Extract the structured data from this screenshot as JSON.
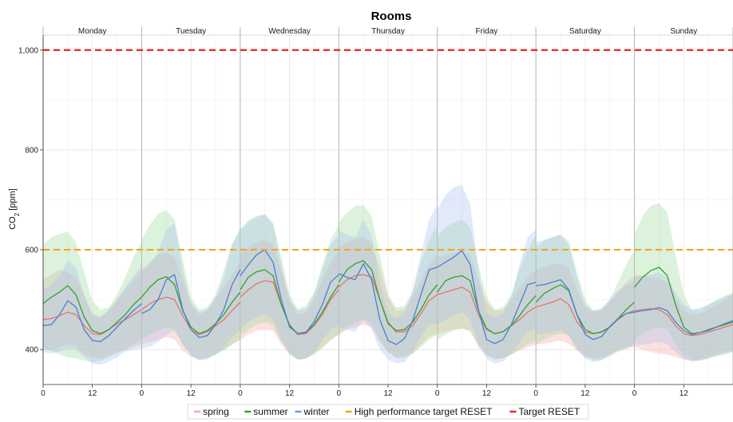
{
  "chart_data": {
    "type": "line",
    "title": "Rooms",
    "ylabel": "CO₂ [ppm]",
    "ylabel_main": "CO",
    "ylabel_sub": "2",
    "ylabel_unit": " [ppm]",
    "ylim": [
      330,
      1030
    ],
    "yticks": [
      400,
      600,
      800,
      1000
    ],
    "ytick_labels": [
      "400",
      "600",
      "800",
      "1,000"
    ],
    "facets": [
      "Monday",
      "Tuesday",
      "Wednesday",
      "Thursday",
      "Friday",
      "Saturday",
      "Sunday"
    ],
    "xtick_labels": [
      "0",
      "12"
    ],
    "x_hours": [
      0,
      2,
      4,
      6,
      8,
      10,
      12,
      14,
      16,
      18,
      20,
      22,
      24
    ],
    "reference_lines": [
      {
        "name": "High performance target RESET",
        "value": 600,
        "color": "#f2a61c"
      },
      {
        "name": "Target RESET",
        "value": 1000,
        "color": "#e8231f"
      }
    ],
    "series": [
      {
        "name": "spring",
        "color": "#e8736c",
        "band_color": "#f5a9a3",
        "values": [
          [
            460,
            462,
            468,
            475,
            470,
            448,
            432,
            430,
            440,
            452,
            460,
            470,
            480
          ],
          [
            480,
            492,
            500,
            505,
            500,
            468,
            440,
            430,
            436,
            448,
            460,
            478,
            495
          ],
          [
            505,
            520,
            532,
            538,
            535,
            490,
            450,
            430,
            432,
            448,
            470,
            500,
            520
          ],
          [
            525,
            540,
            548,
            550,
            545,
            500,
            455,
            435,
            436,
            448,
            472,
            498,
            510
          ],
          [
            510,
            515,
            520,
            525,
            515,
            470,
            440,
            432,
            436,
            448,
            460,
            475,
            485
          ],
          [
            485,
            490,
            495,
            502,
            490,
            455,
            435,
            432,
            436,
            445,
            460,
            472,
            478
          ],
          [
            478,
            480,
            482,
            480,
            470,
            448,
            432,
            428,
            430,
            435,
            440,
            445,
            450
          ]
        ],
        "lower": [
          [
            400,
            398,
            405,
            410,
            408,
            390,
            385,
            382,
            388,
            395,
            400,
            405,
            410
          ],
          [
            410,
            415,
            420,
            425,
            420,
            398,
            385,
            380,
            384,
            392,
            400,
            410,
            420
          ],
          [
            420,
            430,
            438,
            440,
            438,
            410,
            390,
            380,
            382,
            392,
            405,
            420,
            430
          ],
          [
            430,
            440,
            445,
            450,
            445,
            415,
            395,
            385,
            386,
            392,
            410,
            425,
            432
          ],
          [
            432,
            436,
            440,
            442,
            438,
            405,
            388,
            382,
            384,
            390,
            398,
            405,
            410
          ],
          [
            410,
            412,
            415,
            418,
            412,
            398,
            385,
            382,
            384,
            390,
            398,
            402,
            405
          ],
          [
            405,
            400,
            395,
            392,
            390,
            385,
            380,
            378,
            380,
            385,
            390,
            395,
            400
          ]
        ],
        "upper": [
          [
            540,
            550,
            560,
            555,
            545,
            510,
            470,
            465,
            478,
            500,
            520,
            540,
            560
          ],
          [
            560,
            575,
            590,
            595,
            585,
            540,
            490,
            470,
            478,
            500,
            525,
            550,
            575
          ],
          [
            590,
            605,
            615,
            620,
            610,
            560,
            500,
            470,
            475,
            500,
            540,
            575,
            600
          ],
          [
            605,
            615,
            622,
            625,
            615,
            565,
            505,
            478,
            480,
            505,
            540,
            570,
            590
          ],
          [
            585,
            590,
            595,
            598,
            590,
            540,
            495,
            478,
            480,
            500,
            525,
            545,
            560
          ],
          [
            560,
            565,
            570,
            572,
            565,
            520,
            485,
            475,
            478,
            495,
            515,
            535,
            548
          ],
          [
            550,
            548,
            545,
            542,
            535,
            505,
            478,
            470,
            472,
            480,
            490,
            500,
            510
          ]
        ]
      },
      {
        "name": "summer",
        "color": "#33a02c",
        "band_color": "#9ed99a",
        "values": [
          [
            492,
            505,
            515,
            528,
            510,
            465,
            438,
            432,
            440,
            455,
            470,
            490,
            505
          ],
          [
            505,
            525,
            540,
            546,
            530,
            478,
            445,
            432,
            438,
            452,
            470,
            495,
            515
          ],
          [
            520,
            545,
            556,
            560,
            548,
            490,
            448,
            432,
            435,
            450,
            475,
            505,
            530
          ],
          [
            535,
            560,
            572,
            578,
            560,
            500,
            452,
            438,
            440,
            455,
            480,
            510,
            530
          ],
          [
            515,
            538,
            545,
            548,
            538,
            478,
            442,
            432,
            436,
            448,
            468,
            490,
            508
          ],
          [
            495,
            512,
            522,
            530,
            518,
            470,
            440,
            432,
            435,
            445,
            462,
            480,
            495
          ],
          [
            525,
            545,
            558,
            565,
            548,
            490,
            445,
            432,
            434,
            440,
            445,
            450,
            455
          ]
        ],
        "lower": [
          [
            405,
            398,
            390,
            385,
            382,
            378,
            375,
            378,
            385,
            392,
            400,
            410,
            418
          ],
          [
            420,
            430,
            438,
            445,
            440,
            410,
            390,
            380,
            383,
            390,
            398,
            410,
            420
          ],
          [
            428,
            440,
            450,
            455,
            448,
            415,
            392,
            380,
            382,
            390,
            402,
            418,
            430
          ],
          [
            430,
            445,
            455,
            460,
            452,
            418,
            395,
            382,
            384,
            392,
            405,
            420,
            430
          ],
          [
            420,
            430,
            438,
            442,
            436,
            410,
            390,
            380,
            382,
            390,
            400,
            410,
            418
          ],
          [
            410,
            420,
            428,
            432,
            428,
            402,
            388,
            378,
            380,
            386,
            395,
            402,
            410
          ],
          [
            420,
            432,
            440,
            445,
            440,
            410,
            390,
            378,
            378,
            382,
            386,
            390,
            395
          ]
        ],
        "upper": [
          [
            610,
            625,
            632,
            636,
            615,
            555,
            498,
            480,
            485,
            510,
            545,
            585,
            615
          ],
          [
            620,
            650,
            672,
            680,
            660,
            580,
            505,
            480,
            485,
            510,
            560,
            610,
            640
          ],
          [
            640,
            660,
            668,
            670,
            655,
            585,
            510,
            482,
            488,
            515,
            570,
            620,
            650
          ],
          [
            655,
            675,
            688,
            690,
            668,
            590,
            510,
            484,
            488,
            515,
            575,
            620,
            650
          ],
          [
            625,
            645,
            655,
            660,
            645,
            570,
            505,
            480,
            485,
            510,
            560,
            600,
            630
          ],
          [
            605,
            618,
            625,
            630,
            618,
            555,
            500,
            478,
            482,
            500,
            535,
            570,
            600
          ],
          [
            630,
            668,
            688,
            694,
            675,
            590,
            510,
            480,
            480,
            490,
            500,
            508,
            515
          ]
        ]
      },
      {
        "name": "winter",
        "color": "#4a7fd6",
        "band_color": "#a9bff2",
        "values": [
          [
            448,
            450,
            470,
            498,
            485,
            440,
            418,
            416,
            428,
            445,
            462,
            478,
            492
          ],
          [
            472,
            480,
            500,
            540,
            550,
            480,
            440,
            424,
            428,
            450,
            480,
            530,
            560
          ],
          [
            548,
            570,
            590,
            600,
            575,
            500,
            445,
            432,
            434,
            456,
            490,
            535,
            550
          ],
          [
            552,
            545,
            540,
            572,
            540,
            460,
            418,
            410,
            422,
            458,
            510,
            560,
            565
          ],
          [
            565,
            575,
            585,
            598,
            570,
            480,
            420,
            412,
            420,
            450,
            490,
            530,
            535
          ],
          [
            528,
            530,
            535,
            540,
            520,
            470,
            430,
            420,
            426,
            446,
            462,
            472,
            475
          ],
          [
            475,
            478,
            480,
            484,
            478,
            455,
            438,
            430,
            434,
            438,
            445,
            452,
            458
          ]
        ],
        "lower": [
          [
            395,
            392,
            396,
            402,
            400,
            385,
            372,
            370,
            375,
            385,
            395,
            400,
            402
          ],
          [
            402,
            405,
            415,
            430,
            438,
            410,
            388,
            378,
            380,
            390,
            405,
            425,
            440
          ],
          [
            440,
            455,
            465,
            472,
            460,
            420,
            392,
            380,
            382,
            395,
            418,
            440,
            448
          ],
          [
            445,
            440,
            435,
            460,
            440,
            400,
            380,
            372,
            375,
            395,
            425,
            450,
            452
          ],
          [
            452,
            460,
            468,
            475,
            460,
            410,
            382,
            372,
            376,
            392,
            415,
            435,
            440
          ],
          [
            430,
            432,
            435,
            440,
            428,
            400,
            382,
            375,
            378,
            390,
            400,
            405,
            408
          ],
          [
            408,
            410,
            412,
            415,
            410,
            395,
            382,
            376,
            378,
            382,
            388,
            392,
            396
          ]
        ],
        "upper": [
          [
            520,
            530,
            548,
            580,
            565,
            510,
            470,
            465,
            480,
            500,
            525,
            548,
            568
          ],
          [
            555,
            570,
            595,
            640,
            652,
            560,
            495,
            475,
            482,
            505,
            545,
            610,
            645
          ],
          [
            640,
            655,
            665,
            672,
            650,
            570,
            500,
            478,
            482,
            510,
            560,
            610,
            630
          ],
          [
            640,
            630,
            625,
            660,
            630,
            535,
            475,
            462,
            475,
            520,
            590,
            660,
            690
          ],
          [
            680,
            710,
            725,
            730,
            690,
            560,
            475,
            465,
            472,
            505,
            570,
            625,
            640
          ],
          [
            615,
            620,
            625,
            630,
            610,
            545,
            490,
            478,
            482,
            500,
            518,
            530,
            535
          ],
          [
            545,
            548,
            550,
            555,
            545,
            515,
            490,
            480,
            484,
            490,
            498,
            505,
            512
          ]
        ]
      }
    ],
    "legend": {
      "position": "bottom",
      "items": [
        {
          "label": "spring",
          "color": "#f5a9a3"
        },
        {
          "label": "summer",
          "color": "#33a02c"
        },
        {
          "label": "winter",
          "color": "#6a9ae8"
        },
        {
          "label": "High performance target RESET",
          "color": "#f2a61c"
        },
        {
          "label": "Target RESET",
          "color": "#e8231f"
        }
      ]
    }
  }
}
